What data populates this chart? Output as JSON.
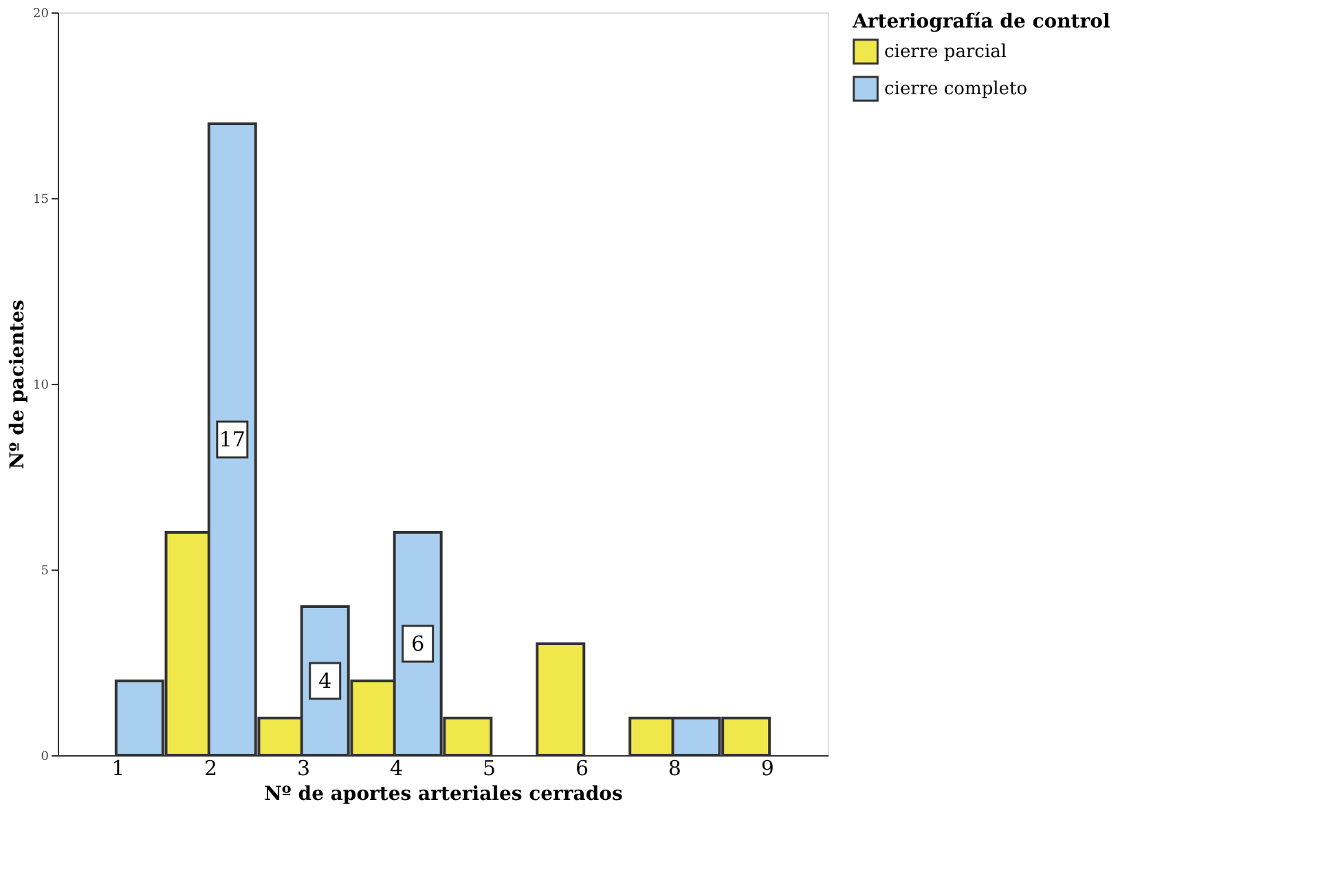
{
  "chart_data": {
    "type": "bar",
    "xlabel": "Nº de aportes arteriales cerrados",
    "ylabel": "Nº de pacientes",
    "legend_title": "Arteriografía de control",
    "categories": [
      "1",
      "2",
      "3",
      "4",
      "5",
      "6",
      "8",
      "9"
    ],
    "series": [
      {
        "name": "cierre parcial",
        "color": "#f0e84a",
        "values": [
          null,
          6,
          1,
          2,
          1,
          3,
          1,
          1
        ]
      },
      {
        "name": "cierre completo",
        "color": "#a9cff0",
        "values": [
          2,
          17,
          4,
          6,
          null,
          null,
          1,
          null
        ],
        "value_labels": [
          null,
          "17",
          "4",
          "6",
          null,
          null,
          null,
          null
        ]
      }
    ],
    "ylim": [
      0,
      20
    ],
    "yticks": [
      0,
      5,
      10,
      15,
      20
    ],
    "grid": false,
    "legend": "top right"
  }
}
